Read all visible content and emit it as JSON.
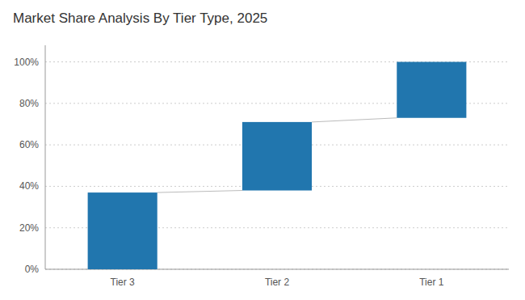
{
  "chart_data": {
    "type": "floating_bar",
    "title": "Market Share Analysis By Tier Type, 2025",
    "categories": [
      "Tier 3",
      "Tier 2",
      "Tier 1"
    ],
    "bottoms": [
      0,
      38,
      73
    ],
    "values": [
      37,
      33,
      27
    ],
    "color": "#2176ae",
    "ylim": [
      0,
      108
    ],
    "yticks": [
      {
        "value": 0,
        "label": "0%"
      },
      {
        "value": 20,
        "label": "20%"
      },
      {
        "value": 40,
        "label": "40%"
      },
      {
        "value": 60,
        "label": "60%"
      },
      {
        "value": 80,
        "label": "80%"
      },
      {
        "value": 100,
        "label": "100%"
      }
    ],
    "grid": true
  }
}
